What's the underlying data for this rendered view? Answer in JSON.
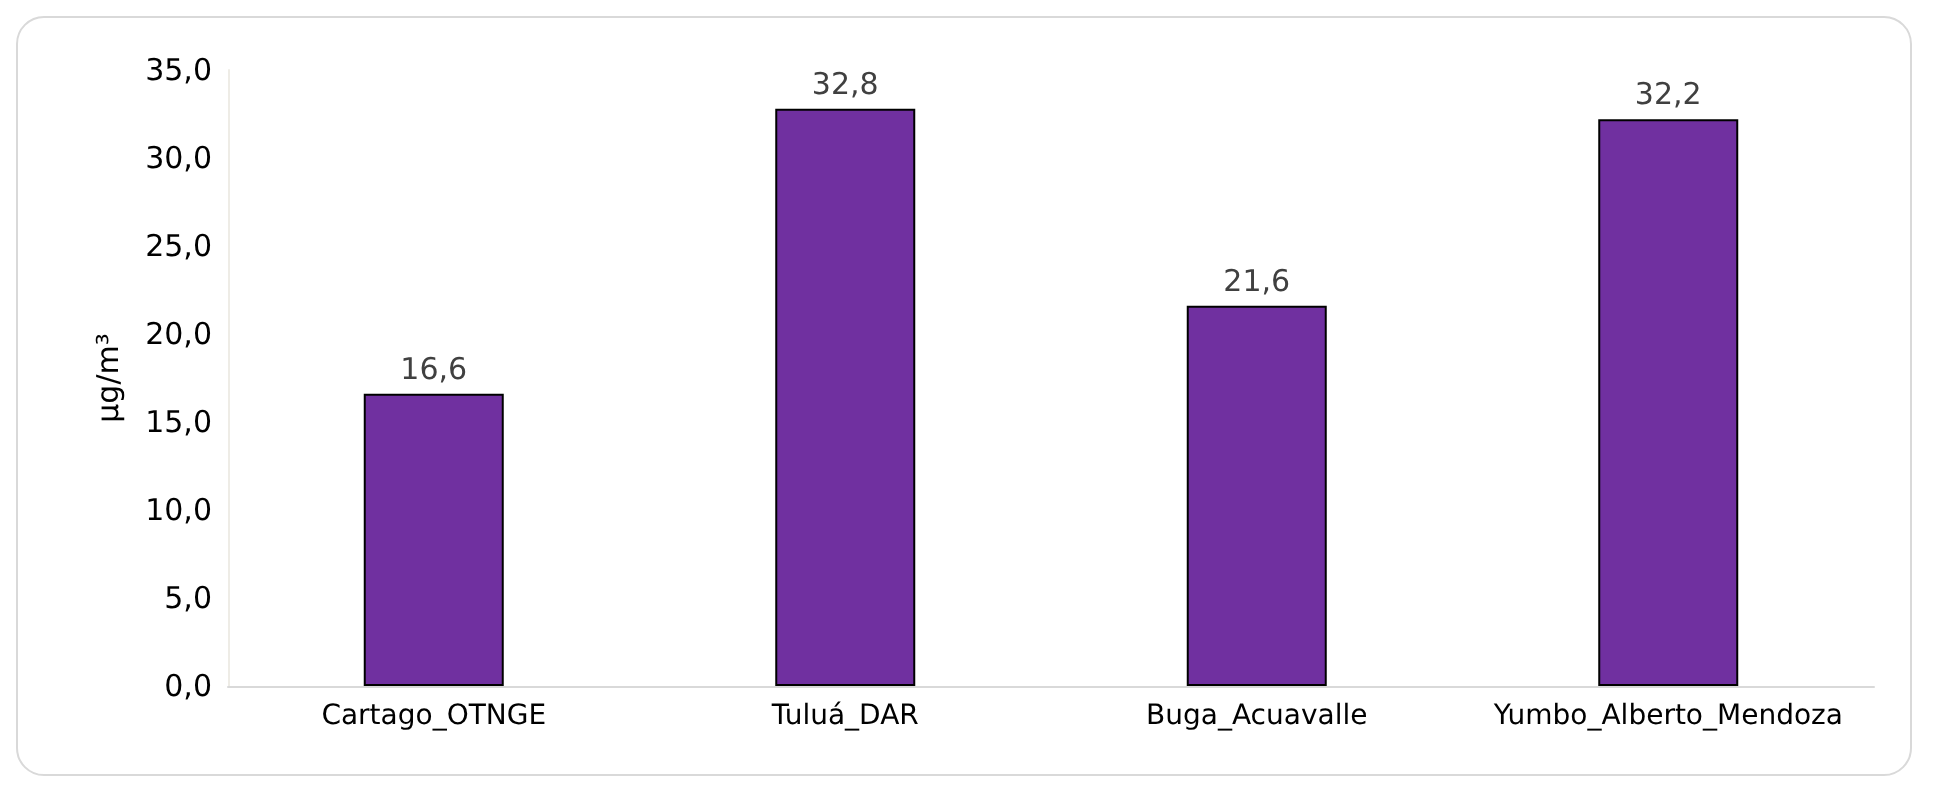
{
  "chart_data": {
    "type": "bar",
    "ylabel": "µg/m³",
    "categories": [
      "Cartago_OTNGE",
      "Tuluá_DAR",
      "Buga_Acuavalle",
      "Yumbo_Alberto_Mendoza"
    ],
    "values": [
      16.6,
      32.8,
      21.6,
      32.2
    ],
    "color": "#7030a0",
    "value_labels": [
      "16,6",
      "32,8",
      "21,6",
      "32,2"
    ],
    "ylim": [
      0,
      35
    ],
    "yticks": [
      {
        "value": 0,
        "label": "0,0"
      },
      {
        "value": 5,
        "label": "5,0"
      },
      {
        "value": 10,
        "label": "10,0"
      },
      {
        "value": 15,
        "label": "15,0"
      },
      {
        "value": 20,
        "label": "20,0"
      },
      {
        "value": 25,
        "label": "25,0"
      },
      {
        "value": 30,
        "label": "30,0"
      },
      {
        "value": 35,
        "label": "35,0"
      }
    ],
    "grid": false
  }
}
